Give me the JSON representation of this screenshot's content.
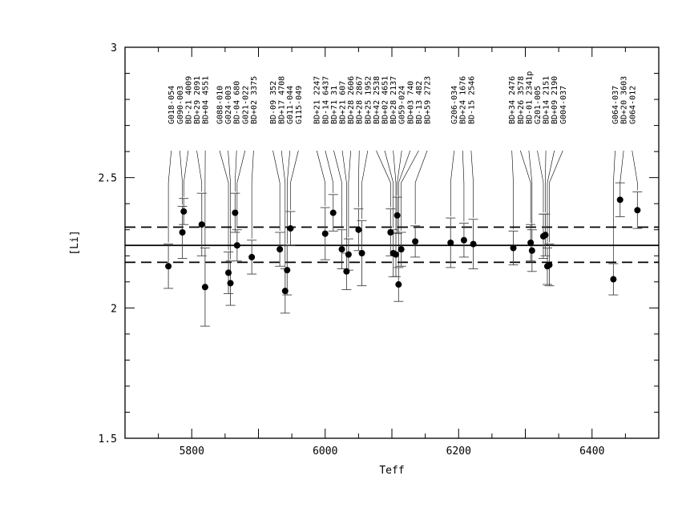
{
  "chart_data": {
    "type": "scatter",
    "title": "",
    "xlabel": "Teff",
    "ylabel": "[Li]",
    "xlim": [
      5700,
      6500
    ],
    "ylim": [
      1.5,
      3.0
    ],
    "x_ticks": [
      5800,
      6000,
      6200,
      6400
    ],
    "x_tick_labels": [
      "5800",
      "6000",
      "6200",
      "6400"
    ],
    "y_ticks": [
      1.5,
      2.0,
      2.5,
      3.0
    ],
    "y_tick_labels": [
      "1.5",
      "2",
      "2.5",
      "3"
    ],
    "grid": false,
    "legend": "none",
    "mean_line": 2.24,
    "dispersion_lines": [
      2.175,
      2.31
    ],
    "stars": [
      {
        "name": "G018-054",
        "teff": 5765,
        "li": 2.16,
        "err": 0.085
      },
      {
        "name": "G090-003",
        "teff": 5786,
        "li": 2.29,
        "err": 0.1
      },
      {
        "name": "BD-21 4009",
        "teff": 5788,
        "li": 2.37,
        "err": 0.05
      },
      {
        "name": "BD+29 2091",
        "teff": 5815,
        "li": 2.32,
        "err": 0.12
      },
      {
        "name": "BD+04 4551",
        "teff": 5820,
        "li": 2.08,
        "err": 0.15
      },
      {
        "name": "G088-010",
        "teff": 5855,
        "li": 2.135,
        "err": 0.08
      },
      {
        "name": "G024-003",
        "teff": 5858,
        "li": 2.095,
        "err": 0.085
      },
      {
        "name": "BD-04 680",
        "teff": 5865,
        "li": 2.365,
        "err": 0.075
      },
      {
        "name": "G021-022",
        "teff": 5868,
        "li": 2.24,
        "err": 0.06
      },
      {
        "name": "BD+02 3375",
        "teff": 5890,
        "li": 2.195,
        "err": 0.065
      },
      {
        "name": "BD-09 352",
        "teff": 5932,
        "li": 2.225,
        "err": 0.065
      },
      {
        "name": "BD+17 4708",
        "teff": 5940,
        "li": 2.065,
        "err": 0.085
      },
      {
        "name": "G011-044",
        "teff": 5943,
        "li": 2.145,
        "err": 0.095
      },
      {
        "name": "G115-049",
        "teff": 5948,
        "li": 2.305,
        "err": 0.065
      },
      {
        "name": "BD+21 2247",
        "teff": 6000,
        "li": 2.285,
        "err": 0.1
      },
      {
        "name": "BD-14 6437",
        "teff": 6012,
        "li": 2.365,
        "err": 0.07
      },
      {
        "name": "BD+71 31",
        "teff": 6025,
        "li": 2.225,
        "err": 0.075
      },
      {
        "name": "BD+21 607",
        "teff": 6032,
        "li": 2.14,
        "err": 0.07
      },
      {
        "name": "BD+28 2606",
        "teff": 6035,
        "li": 2.205,
        "err": 0.06
      },
      {
        "name": "BD+28 2867",
        "teff": 6050,
        "li": 2.3,
        "err": 0.08
      },
      {
        "name": "BD+25 1952",
        "teff": 6055,
        "li": 2.21,
        "err": 0.125
      },
      {
        "name": "BD+42 2538",
        "teff": 6098,
        "li": 2.29,
        "err": 0.09
      },
      {
        "name": "BD+02 4651",
        "teff": 6102,
        "li": 2.21,
        "err": 0.09
      },
      {
        "name": "BD+28 2137",
        "teff": 6106,
        "li": 2.205,
        "err": 0.085
      },
      {
        "name": "G059-024",
        "teff": 6108,
        "li": 2.355,
        "err": 0.07
      },
      {
        "name": "BD+03 740",
        "teff": 6110,
        "li": 2.09,
        "err": 0.065
      },
      {
        "name": "BD-13 482",
        "teff": 6114,
        "li": 2.225,
        "err": 0.065
      },
      {
        "name": "BD+59 2723",
        "teff": 6135,
        "li": 2.255,
        "err": 0.06
      },
      {
        "name": "G206-034",
        "teff": 6188,
        "li": 2.25,
        "err": 0.095
      },
      {
        "name": "BD+24 1676",
        "teff": 6208,
        "li": 2.26,
        "err": 0.065
      },
      {
        "name": "BD-15 2546",
        "teff": 6222,
        "li": 2.245,
        "err": 0.095
      },
      {
        "name": "BD+34 2476",
        "teff": 6282,
        "li": 2.23,
        "err": 0.065
      },
      {
        "name": "BD+26 3578",
        "teff": 6308,
        "li": 2.25,
        "err": 0.07
      },
      {
        "name": "BD-01 2341p",
        "teff": 6310,
        "li": 2.22,
        "err": 0.08
      },
      {
        "name": "G201-005",
        "teff": 6327,
        "li": 2.275,
        "err": 0.085
      },
      {
        "name": "BD+14 2151",
        "teff": 6330,
        "li": 2.28,
        "err": 0.08
      },
      {
        "name": "BD+09 2190",
        "teff": 6333,
        "li": 2.16,
        "err": 0.07
      },
      {
        "name": "G004-037",
        "teff": 6336,
        "li": 2.165,
        "err": 0.08
      },
      {
        "name": "G064-037",
        "teff": 6432,
        "li": 2.11,
        "err": 0.06
      },
      {
        "name": "BD+20 3603",
        "teff": 6442,
        "li": 2.415,
        "err": 0.065
      },
      {
        "name": "G064-012",
        "teff": 6468,
        "li": 2.375,
        "err": 0.07
      }
    ],
    "label_groups": [
      {
        "labels": [
          "G018-054",
          "G090-003",
          "BD-21 4009",
          "BD+29 2091",
          "BD+04 4551"
        ],
        "points": [
          0,
          1,
          2,
          3,
          4
        ]
      },
      {
        "labels": [
          "G088-010",
          "G024-003",
          "BD-04 680",
          "G021-022",
          "BD+02 3375"
        ],
        "points": [
          5,
          6,
          7,
          8,
          9
        ]
      },
      {
        "labels": [
          "BD-09 352",
          "BD+17 4708",
          "G011-044",
          "G115-049"
        ],
        "points": [
          10,
          11,
          12,
          13
        ]
      },
      {
        "labels": [
          "BD+21 2247",
          "BD-14 6437",
          "BD+71 31",
          "BD+21 607",
          "BD+28 2606",
          "BD+28 2867",
          "BD+25 1952",
          "BD+42 2538",
          "BD+02 4651",
          "BD+28 2137",
          "G059-024",
          "BD+03 740",
          "BD-13 482",
          "BD+59 2723"
        ],
        "points": [
          14,
          15,
          16,
          17,
          18,
          19,
          20,
          21,
          22,
          23,
          24,
          25,
          26,
          27
        ]
      },
      {
        "labels": [
          "G206-034",
          "BD+24 1676",
          "BD-15 2546"
        ],
        "points": [
          28,
          29,
          30
        ]
      },
      {
        "labels": [
          "BD+34 2476",
          "BD+26 3578",
          "BD-01 2341p",
          "G201-005",
          "BD+14 2151",
          "BD+09 2190",
          "G004-037"
        ],
        "points": [
          31,
          32,
          33,
          34,
          35,
          36,
          37
        ]
      },
      {
        "labels": [
          "G064-037",
          "BD+20 3603",
          "G064-012"
        ],
        "points": [
          38,
          39,
          40
        ]
      }
    ]
  }
}
